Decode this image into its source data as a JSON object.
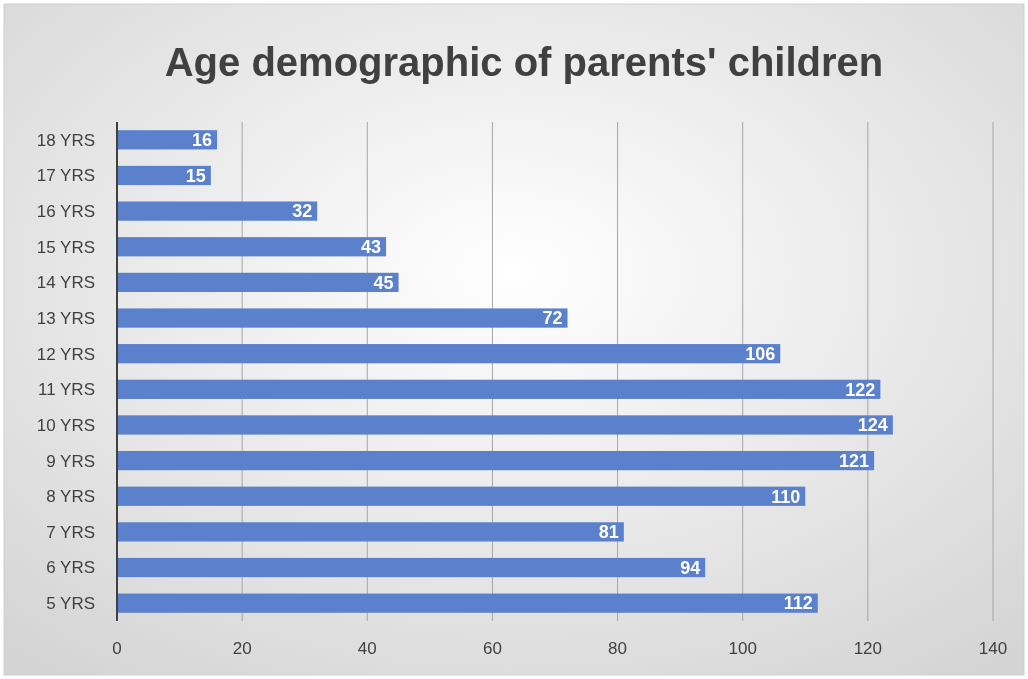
{
  "chart_data": {
    "type": "bar",
    "orientation": "horizontal",
    "title": "Age demographic of parents' children",
    "categories": [
      "18 YRS",
      "17 YRS",
      "16 YRS",
      "15 YRS",
      "14 YRS",
      "13 YRS",
      "12 YRS",
      "11 YRS",
      "10 YRS",
      "9 YRS",
      "8 YRS",
      "7 YRS",
      "6 YRS",
      "5 YRS"
    ],
    "values": [
      16,
      15,
      32,
      43,
      45,
      72,
      106,
      122,
      124,
      121,
      110,
      81,
      94,
      112
    ],
    "color": "#5b80cc",
    "xlim": [
      0,
      140
    ],
    "xticks": [
      0,
      20,
      40,
      60,
      80,
      100,
      120,
      140
    ],
    "grid": "x",
    "data_labels": true
  }
}
